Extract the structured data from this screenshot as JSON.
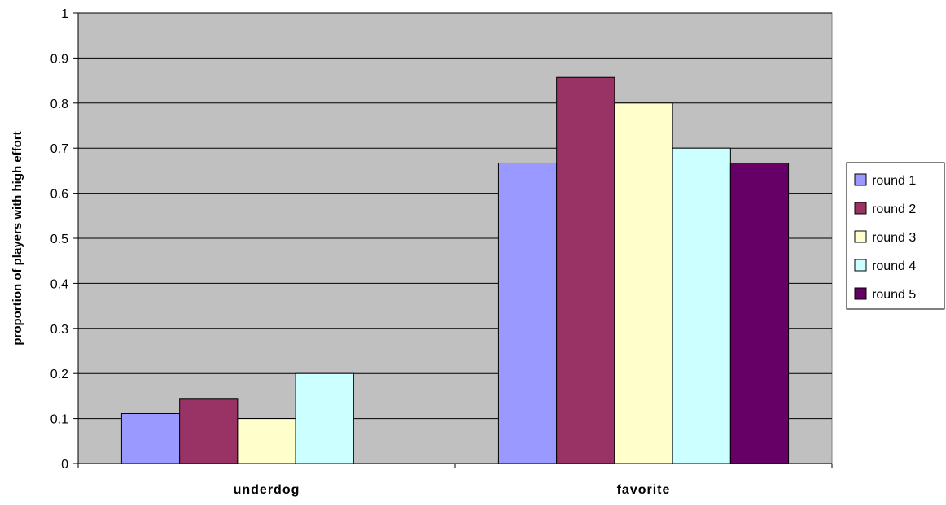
{
  "colors": {
    "plot_background": "#c0c0c0",
    "gridline": "#000000",
    "series": [
      "#9999ff",
      "#993366",
      "#ffffcc",
      "#ccffff",
      "#660066"
    ]
  },
  "chart_data": {
    "type": "bar",
    "title": "",
    "xlabel": "",
    "ylabel": "proportion of players with high effort",
    "categories": [
      "underdog",
      "favorite"
    ],
    "ylim": [
      0,
      1
    ],
    "yticks": [
      "0",
      "0.1",
      "0.2",
      "0.3",
      "0.4",
      "0.5",
      "0.6",
      "0.7",
      "0.8",
      "0.9",
      "1"
    ],
    "grid": true,
    "legend_position": "right",
    "series": [
      {
        "name": "round 1",
        "values": [
          0.111,
          0.667
        ]
      },
      {
        "name": "round 2",
        "values": [
          0.143,
          0.857
        ]
      },
      {
        "name": "round 3",
        "values": [
          0.1,
          0.8
        ]
      },
      {
        "name": "round 4",
        "values": [
          0.2,
          0.7
        ]
      },
      {
        "name": "round 5",
        "values": [
          0,
          0.667
        ]
      }
    ]
  }
}
